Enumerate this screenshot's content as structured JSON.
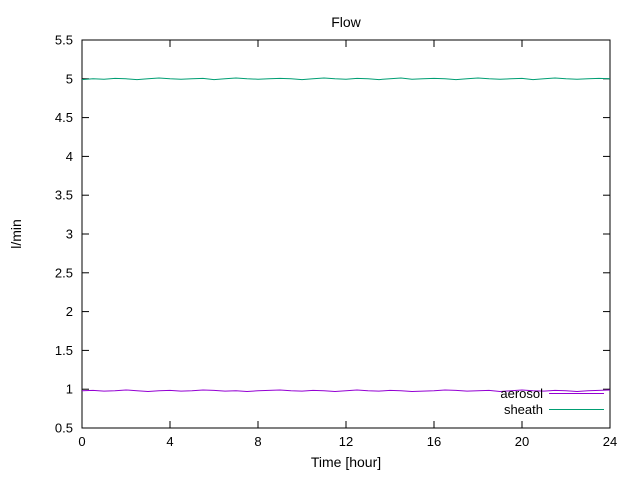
{
  "chart_data": {
    "type": "line",
    "title": "Flow",
    "xlabel": "Time [hour]",
    "ylabel": "l/min",
    "xlim": [
      0,
      24
    ],
    "ylim": [
      0.5,
      5.5
    ],
    "xticks": [
      0,
      4,
      8,
      12,
      16,
      20,
      24
    ],
    "yticks": [
      0.5,
      1,
      1.5,
      2,
      2.5,
      3,
      3.5,
      4,
      4.5,
      5,
      5.5
    ],
    "grid": false,
    "legend_position": "inside-bottom-right",
    "x": [
      0,
      0.5,
      1,
      1.5,
      2,
      2.5,
      3,
      3.5,
      4,
      4.5,
      5,
      5.5,
      6,
      6.5,
      7,
      7.5,
      8,
      8.5,
      9,
      9.5,
      10,
      10.5,
      11,
      11.5,
      12,
      12.5,
      13,
      13.5,
      14,
      14.5,
      15,
      15.5,
      16,
      16.5,
      17,
      17.5,
      18,
      18.5,
      19,
      19.5,
      20,
      20.5,
      21,
      21.5,
      22,
      22.5,
      23,
      23.5,
      24
    ],
    "series": [
      {
        "name": "aerosol",
        "color": "#9400d3",
        "values": [
          0.98,
          0.985,
          0.975,
          0.98,
          0.99,
          0.98,
          0.97,
          0.98,
          0.985,
          0.975,
          0.98,
          0.99,
          0.985,
          0.975,
          0.98,
          0.97,
          0.98,
          0.985,
          0.99,
          0.98,
          0.975,
          0.985,
          0.98,
          0.97,
          0.98,
          0.99,
          0.98,
          0.975,
          0.985,
          0.98,
          0.97,
          0.975,
          0.98,
          0.99,
          0.985,
          0.975,
          0.98,
          0.985,
          0.97,
          0.98,
          0.99,
          0.98,
          0.975,
          0.985,
          0.98,
          0.97,
          0.98,
          0.985,
          0.99
        ]
      },
      {
        "name": "sheath",
        "color": "#009e73",
        "values": [
          4.99,
          5.0,
          4.995,
          5.005,
          5.0,
          4.99,
          5.0,
          5.01,
          5.0,
          4.995,
          5.0,
          5.005,
          4.99,
          5.0,
          5.01,
          5.0,
          4.995,
          5.0,
          5.005,
          5.0,
          4.99,
          5.0,
          5.01,
          5.0,
          4.995,
          5.005,
          5.0,
          4.99,
          5.0,
          5.01,
          4.995,
          5.0,
          5.005,
          5.0,
          4.99,
          5.0,
          5.01,
          5.0,
          4.995,
          5.0,
          5.005,
          4.99,
          5.0,
          5.01,
          5.0,
          4.995,
          5.0,
          5.005,
          5.0
        ]
      }
    ]
  }
}
